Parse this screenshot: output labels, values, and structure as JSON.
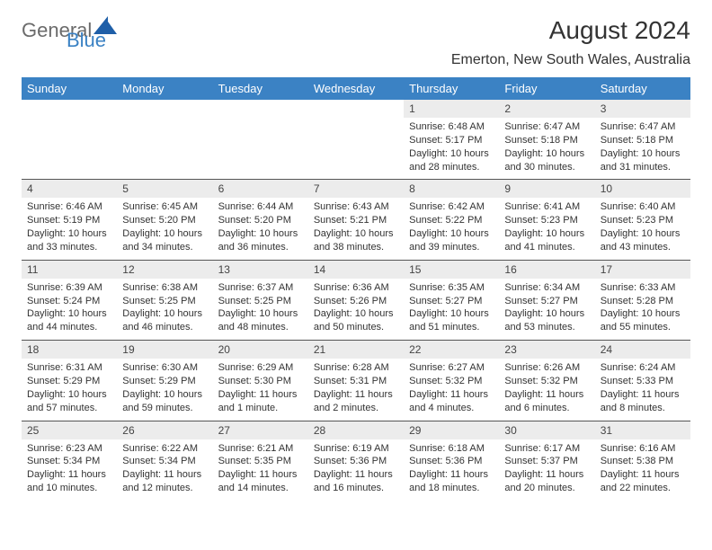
{
  "brand": {
    "general": "General",
    "blue": "Blue",
    "tri_color": "#1f5fa8"
  },
  "title": "August 2024",
  "location": "Emerton, New South Wales, Australia",
  "colors": {
    "header_bg": "#3b82c4",
    "header_text": "#ffffff",
    "daynum_bg": "#ececec",
    "text": "#333333",
    "rule": "#555555"
  },
  "day_headers": [
    "Sunday",
    "Monday",
    "Tuesday",
    "Wednesday",
    "Thursday",
    "Friday",
    "Saturday"
  ],
  "weeks": [
    [
      {
        "n": "",
        "sr": "",
        "ss": "",
        "dl": ""
      },
      {
        "n": "",
        "sr": "",
        "ss": "",
        "dl": ""
      },
      {
        "n": "",
        "sr": "",
        "ss": "",
        "dl": ""
      },
      {
        "n": "",
        "sr": "",
        "ss": "",
        "dl": ""
      },
      {
        "n": "1",
        "sr": "Sunrise: 6:48 AM",
        "ss": "Sunset: 5:17 PM",
        "dl": "Daylight: 10 hours and 28 minutes."
      },
      {
        "n": "2",
        "sr": "Sunrise: 6:47 AM",
        "ss": "Sunset: 5:18 PM",
        "dl": "Daylight: 10 hours and 30 minutes."
      },
      {
        "n": "3",
        "sr": "Sunrise: 6:47 AM",
        "ss": "Sunset: 5:18 PM",
        "dl": "Daylight: 10 hours and 31 minutes."
      }
    ],
    [
      {
        "n": "4",
        "sr": "Sunrise: 6:46 AM",
        "ss": "Sunset: 5:19 PM",
        "dl": "Daylight: 10 hours and 33 minutes."
      },
      {
        "n": "5",
        "sr": "Sunrise: 6:45 AM",
        "ss": "Sunset: 5:20 PM",
        "dl": "Daylight: 10 hours and 34 minutes."
      },
      {
        "n": "6",
        "sr": "Sunrise: 6:44 AM",
        "ss": "Sunset: 5:20 PM",
        "dl": "Daylight: 10 hours and 36 minutes."
      },
      {
        "n": "7",
        "sr": "Sunrise: 6:43 AM",
        "ss": "Sunset: 5:21 PM",
        "dl": "Daylight: 10 hours and 38 minutes."
      },
      {
        "n": "8",
        "sr": "Sunrise: 6:42 AM",
        "ss": "Sunset: 5:22 PM",
        "dl": "Daylight: 10 hours and 39 minutes."
      },
      {
        "n": "9",
        "sr": "Sunrise: 6:41 AM",
        "ss": "Sunset: 5:23 PM",
        "dl": "Daylight: 10 hours and 41 minutes."
      },
      {
        "n": "10",
        "sr": "Sunrise: 6:40 AM",
        "ss": "Sunset: 5:23 PM",
        "dl": "Daylight: 10 hours and 43 minutes."
      }
    ],
    [
      {
        "n": "11",
        "sr": "Sunrise: 6:39 AM",
        "ss": "Sunset: 5:24 PM",
        "dl": "Daylight: 10 hours and 44 minutes."
      },
      {
        "n": "12",
        "sr": "Sunrise: 6:38 AM",
        "ss": "Sunset: 5:25 PM",
        "dl": "Daylight: 10 hours and 46 minutes."
      },
      {
        "n": "13",
        "sr": "Sunrise: 6:37 AM",
        "ss": "Sunset: 5:25 PM",
        "dl": "Daylight: 10 hours and 48 minutes."
      },
      {
        "n": "14",
        "sr": "Sunrise: 6:36 AM",
        "ss": "Sunset: 5:26 PM",
        "dl": "Daylight: 10 hours and 50 minutes."
      },
      {
        "n": "15",
        "sr": "Sunrise: 6:35 AM",
        "ss": "Sunset: 5:27 PM",
        "dl": "Daylight: 10 hours and 51 minutes."
      },
      {
        "n": "16",
        "sr": "Sunrise: 6:34 AM",
        "ss": "Sunset: 5:27 PM",
        "dl": "Daylight: 10 hours and 53 minutes."
      },
      {
        "n": "17",
        "sr": "Sunrise: 6:33 AM",
        "ss": "Sunset: 5:28 PM",
        "dl": "Daylight: 10 hours and 55 minutes."
      }
    ],
    [
      {
        "n": "18",
        "sr": "Sunrise: 6:31 AM",
        "ss": "Sunset: 5:29 PM",
        "dl": "Daylight: 10 hours and 57 minutes."
      },
      {
        "n": "19",
        "sr": "Sunrise: 6:30 AM",
        "ss": "Sunset: 5:29 PM",
        "dl": "Daylight: 10 hours and 59 minutes."
      },
      {
        "n": "20",
        "sr": "Sunrise: 6:29 AM",
        "ss": "Sunset: 5:30 PM",
        "dl": "Daylight: 11 hours and 1 minute."
      },
      {
        "n": "21",
        "sr": "Sunrise: 6:28 AM",
        "ss": "Sunset: 5:31 PM",
        "dl": "Daylight: 11 hours and 2 minutes."
      },
      {
        "n": "22",
        "sr": "Sunrise: 6:27 AM",
        "ss": "Sunset: 5:32 PM",
        "dl": "Daylight: 11 hours and 4 minutes."
      },
      {
        "n": "23",
        "sr": "Sunrise: 6:26 AM",
        "ss": "Sunset: 5:32 PM",
        "dl": "Daylight: 11 hours and 6 minutes."
      },
      {
        "n": "24",
        "sr": "Sunrise: 6:24 AM",
        "ss": "Sunset: 5:33 PM",
        "dl": "Daylight: 11 hours and 8 minutes."
      }
    ],
    [
      {
        "n": "25",
        "sr": "Sunrise: 6:23 AM",
        "ss": "Sunset: 5:34 PM",
        "dl": "Daylight: 11 hours and 10 minutes."
      },
      {
        "n": "26",
        "sr": "Sunrise: 6:22 AM",
        "ss": "Sunset: 5:34 PM",
        "dl": "Daylight: 11 hours and 12 minutes."
      },
      {
        "n": "27",
        "sr": "Sunrise: 6:21 AM",
        "ss": "Sunset: 5:35 PM",
        "dl": "Daylight: 11 hours and 14 minutes."
      },
      {
        "n": "28",
        "sr": "Sunrise: 6:19 AM",
        "ss": "Sunset: 5:36 PM",
        "dl": "Daylight: 11 hours and 16 minutes."
      },
      {
        "n": "29",
        "sr": "Sunrise: 6:18 AM",
        "ss": "Sunset: 5:36 PM",
        "dl": "Daylight: 11 hours and 18 minutes."
      },
      {
        "n": "30",
        "sr": "Sunrise: 6:17 AM",
        "ss": "Sunset: 5:37 PM",
        "dl": "Daylight: 11 hours and 20 minutes."
      },
      {
        "n": "31",
        "sr": "Sunrise: 6:16 AM",
        "ss": "Sunset: 5:38 PM",
        "dl": "Daylight: 11 hours and 22 minutes."
      }
    ]
  ]
}
